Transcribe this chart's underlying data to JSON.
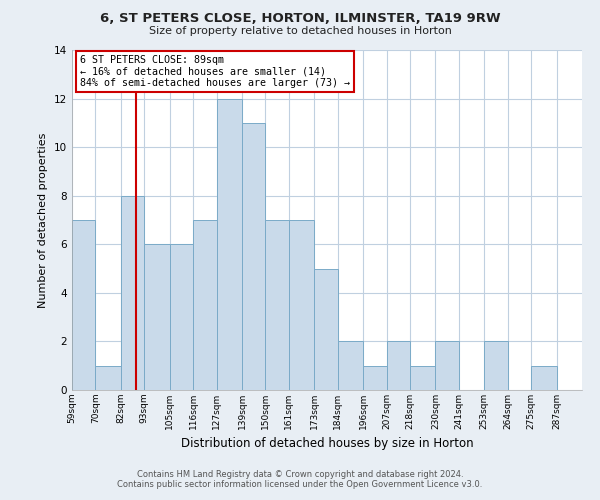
{
  "title": "6, ST PETERS CLOSE, HORTON, ILMINSTER, TA19 9RW",
  "subtitle": "Size of property relative to detached houses in Horton",
  "xlabel": "Distribution of detached houses by size in Horton",
  "ylabel": "Number of detached properties",
  "bin_labels": [
    "59sqm",
    "70sqm",
    "82sqm",
    "93sqm",
    "105sqm",
    "116sqm",
    "127sqm",
    "139sqm",
    "150sqm",
    "161sqm",
    "173sqm",
    "184sqm",
    "196sqm",
    "207sqm",
    "218sqm",
    "230sqm",
    "241sqm",
    "253sqm",
    "264sqm",
    "275sqm",
    "287sqm"
  ],
  "bin_edges": [
    59,
    70,
    82,
    93,
    105,
    116,
    127,
    139,
    150,
    161,
    173,
    184,
    196,
    207,
    218,
    230,
    241,
    253,
    264,
    275,
    287,
    299
  ],
  "counts": [
    7,
    1,
    8,
    6,
    6,
    7,
    12,
    11,
    7,
    7,
    5,
    2,
    1,
    2,
    1,
    2,
    0,
    2,
    0,
    1,
    0
  ],
  "bar_color": "#c9daea",
  "bar_edge_color": "#7aaac8",
  "property_size": 89,
  "property_label": "6 ST PETERS CLOSE: 89sqm",
  "pct_smaller": 16,
  "n_smaller": 14,
  "pct_larger": 84,
  "n_larger": 73,
  "vline_color": "#cc0000",
  "annotation_box_edge_color": "#cc0000",
  "ylim": [
    0,
    14
  ],
  "yticks": [
    0,
    2,
    4,
    6,
    8,
    10,
    12,
    14
  ],
  "footer_line1": "Contains HM Land Registry data © Crown copyright and database right 2024.",
  "footer_line2": "Contains public sector information licensed under the Open Government Licence v3.0.",
  "bg_color": "#e8eef4",
  "plot_bg_color": "#ffffff",
  "grid_color": "#c0d0e0"
}
